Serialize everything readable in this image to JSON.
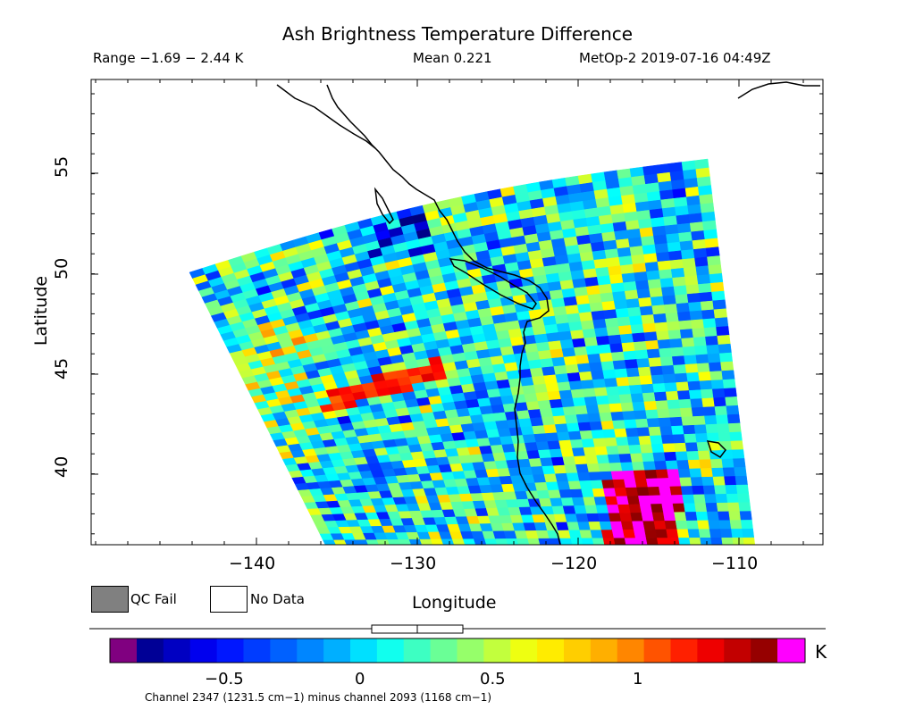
{
  "header": {
    "title": "Ash Brightness Temperature Difference",
    "range": "Range −1.69 − 2.44 K",
    "mean": "Mean 0.221",
    "satellite_time": "MetOp-2 2019-07-16 04:49Z"
  },
  "axes": {
    "xlabel": "Longitude",
    "ylabel": "Latitude",
    "x_ticks": [
      "−140",
      "−130",
      "−120",
      "−110"
    ],
    "y_ticks": [
      "40",
      "45",
      "50",
      "55"
    ]
  },
  "legend": {
    "qc_fail": "QC Fail",
    "no_data": "No Data",
    "qc_fail_color": "#808080",
    "no_data_color": "#ffffff"
  },
  "colorbar": {
    "unit": "K",
    "ticks": [
      "−0.5",
      "0",
      "0.5",
      "1"
    ],
    "under_color": "#800080",
    "over_color": "#ff00ff"
  },
  "footnote": "Channel 2347 (1231.5 cm−1) minus channel 2093 (1168 cm−1)"
}
